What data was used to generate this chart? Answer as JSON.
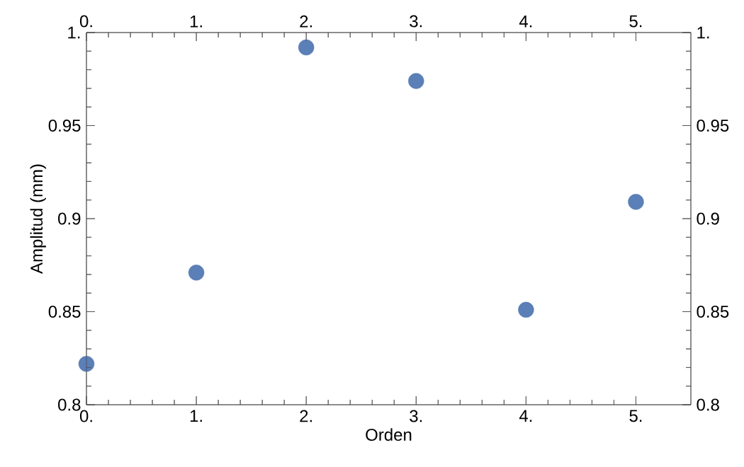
{
  "chart_data": {
    "type": "scatter",
    "xlabel": "Orden",
    "ylabel": "Amplitud (mm)",
    "x": [
      0,
      1,
      2,
      3,
      4,
      5
    ],
    "values": [
      0.822,
      0.871,
      0.992,
      0.974,
      0.851,
      0.909
    ],
    "color": "#5b7fb7",
    "xlim": [
      0,
      5.5
    ],
    "ylim": [
      0.8,
      1.0
    ],
    "xticks": [
      {
        "value": 0,
        "label": "0."
      },
      {
        "value": 1,
        "label": "1."
      },
      {
        "value": 2,
        "label": "2."
      },
      {
        "value": 3,
        "label": "3."
      },
      {
        "value": 4,
        "label": "4."
      },
      {
        "value": 5,
        "label": "5."
      }
    ],
    "yticks": [
      0.8,
      0.85,
      0.9,
      0.95,
      {
        "value": 1,
        "label": "1."
      }
    ],
    "x2lim": [
      0,
      5.5
    ],
    "x2ticks": [
      {
        "value": 0,
        "label": "0."
      },
      {
        "value": 1,
        "label": "1."
      },
      {
        "value": 2,
        "label": "2."
      },
      {
        "value": 3,
        "label": "3."
      },
      {
        "value": 4,
        "label": "4."
      },
      {
        "value": 5,
        "label": "5."
      }
    ],
    "y2lim": [
      0.8,
      1.0
    ],
    "y2ticks": [
      0.8,
      0.85,
      0.9,
      0.95,
      {
        "value": 1,
        "label": "1."
      }
    ]
  }
}
